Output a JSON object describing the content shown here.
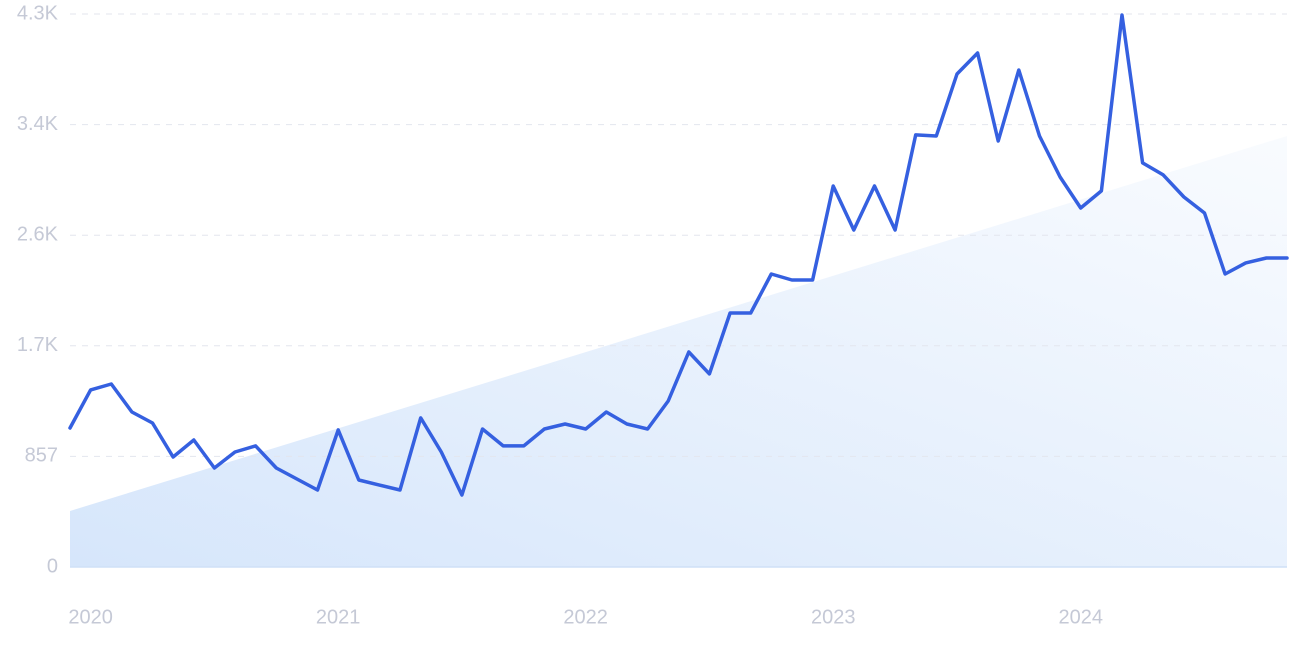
{
  "chart_data": {
    "type": "line",
    "categories": [
      null,
      "2020",
      null,
      null,
      null,
      null,
      null,
      null,
      null,
      null,
      null,
      null,
      null,
      "2021",
      null,
      null,
      null,
      null,
      null,
      null,
      null,
      null,
      null,
      null,
      null,
      "2022",
      null,
      null,
      null,
      null,
      null,
      null,
      null,
      null,
      null,
      null,
      null,
      "2023",
      null,
      null,
      null,
      null,
      null,
      null,
      null,
      null,
      null,
      null,
      null,
      "2024",
      null,
      null,
      null,
      null,
      null,
      null,
      null,
      null,
      null,
      null
    ],
    "values": [
      1077,
      1372,
      1418,
      1201,
      1116,
      852,
      984,
      767,
      891,
      938,
      767,
      682,
      597,
      1062,
      674,
      635,
      597,
      1155,
      891,
      558,
      1069,
      938,
      938,
      1069,
      1108,
      1069,
      1201,
      1108,
      1069,
      1286,
      1666,
      1496,
      1968,
      1968,
      2270,
      2224,
      2224,
      2952,
      2611,
      2952,
      2611,
      3348,
      3340,
      3820,
      3983,
      3301,
      3851,
      3340,
      3022,
      2782,
      2914,
      4277,
      3131,
      3038,
      2867,
      2743,
      2270,
      2356,
      2394,
      2394
    ],
    "color": "#3560e0",
    "trend": [
      434,
      3340
    ],
    "trend_color": "#d6e6fb",
    "ylim": [
      0,
      4285
    ],
    "yticks": [
      0,
      857,
      {
        "value": 1714,
        "label": "1.7K"
      },
      {
        "value": 2571,
        "label": "2.6K"
      },
      {
        "value": 3428,
        "label": "3.4K"
      },
      {
        "value": 4285,
        "label": "4.3K"
      }
    ],
    "grid": true
  }
}
